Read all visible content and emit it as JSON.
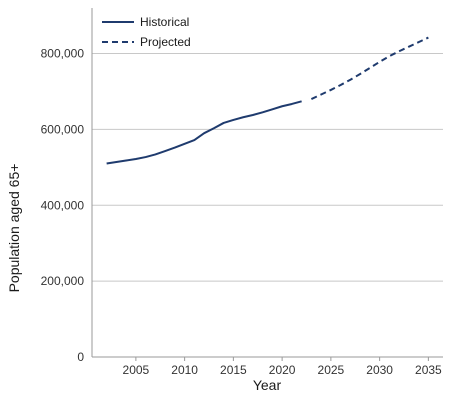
{
  "chart_data": {
    "type": "line",
    "title": "",
    "xlabel": "Year",
    "ylabel": "Population aged 65+",
    "xlim": [
      2000.5,
      2036.5
    ],
    "ylim": [
      0,
      920000
    ],
    "x_ticks": [
      2005,
      2010,
      2015,
      2020,
      2025,
      2030,
      2035
    ],
    "x_tick_labels": [
      "2005",
      "2010",
      "2015",
      "2020",
      "2025",
      "2030",
      "2035"
    ],
    "y_ticks": [
      0,
      200000,
      400000,
      600000,
      800000
    ],
    "y_tick_labels": [
      "0",
      "200,000",
      "400,000",
      "600,000",
      "800,000"
    ],
    "grid": "horizontal",
    "legend_position": "top-left",
    "series": [
      {
        "name": "Historical",
        "style": "solid",
        "color": "#1f3b6e",
        "x": [
          2002,
          2003,
          2004,
          2005,
          2006,
          2007,
          2008,
          2009,
          2010,
          2011,
          2012,
          2013,
          2014,
          2015,
          2016,
          2017,
          2018,
          2019,
          2020,
          2021,
          2022
        ],
        "values": [
          510000,
          514000,
          518000,
          522000,
          527000,
          534000,
          543000,
          552000,
          562000,
          572000,
          590000,
          603000,
          617000,
          625000,
          632000,
          638000,
          645000,
          653000,
          661000,
          667000,
          674000
        ]
      },
      {
        "name": "Projected",
        "style": "dashed",
        "color": "#1f3b6e",
        "x": [
          2023,
          2024,
          2025,
          2026,
          2027,
          2028,
          2029,
          2030,
          2031,
          2032,
          2033,
          2034,
          2035
        ],
        "values": [
          680000,
          692000,
          704000,
          717000,
          731000,
          746000,
          762000,
          778000,
          793000,
          806000,
          818000,
          830000,
          842000
        ]
      }
    ]
  }
}
